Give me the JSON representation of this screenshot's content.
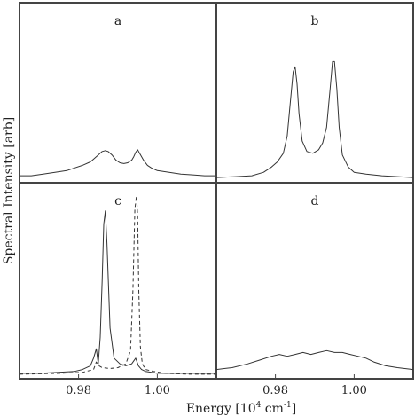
{
  "chart_data": {
    "type": "line",
    "ylabel": "Spectral Intensity [arb]",
    "xlabel": "Energy [10",
    "xlabel_sup": "4",
    "xlabel_tail": " cm",
    "xlabel_sup2": "-1",
    "xlabel_end": "]",
    "xlim": [
      0.965,
      1.015
    ],
    "xticks": [
      0.98,
      1.0
    ],
    "xtick_labels": [
      "0.98",
      "1.00"
    ],
    "ylim": [
      0,
      1
    ],
    "panels": [
      {
        "label": "a",
        "series": [
          {
            "style": "solid",
            "x": [
              0.965,
              0.968,
              0.971,
              0.974,
              0.977,
              0.979,
              0.981,
              0.983,
              0.984,
              0.985,
              0.986,
              0.9868,
              0.9875,
              0.9885,
              0.9895,
              0.9905,
              0.9915,
              0.9925,
              0.9935,
              0.994,
              0.9945,
              0.995,
              0.9955,
              0.9965,
              0.9975,
              0.9985,
              1.0,
              1.003,
              1.006,
              1.009,
              1.012,
              1.015
            ],
            "y": [
              0.02,
              0.02,
              0.03,
              0.04,
              0.05,
              0.065,
              0.08,
              0.1,
              0.12,
              0.14,
              0.16,
              0.165,
              0.16,
              0.14,
              0.11,
              0.095,
              0.09,
              0.095,
              0.11,
              0.13,
              0.155,
              0.17,
              0.15,
              0.11,
              0.08,
              0.065,
              0.05,
              0.04,
              0.03,
              0.025,
              0.02,
              0.02
            ]
          }
        ]
      },
      {
        "label": "b",
        "series": [
          {
            "style": "solid",
            "x": [
              0.965,
              0.97,
              0.974,
              0.977,
              0.979,
              0.9805,
              0.982,
              0.983,
              0.9838,
              0.9845,
              0.985,
              0.9855,
              0.986,
              0.9868,
              0.988,
              0.9895,
              0.991,
              0.992,
              0.993,
              0.9938,
              0.9945,
              0.995,
              0.9956,
              0.9962,
              0.997,
              0.9985,
              1.0,
              1.003,
              1.007,
              1.011,
              1.015
            ],
            "y": [
              0.01,
              0.015,
              0.02,
              0.04,
              0.07,
              0.1,
              0.15,
              0.25,
              0.45,
              0.62,
              0.65,
              0.55,
              0.38,
              0.22,
              0.16,
              0.15,
              0.17,
              0.21,
              0.3,
              0.5,
              0.68,
              0.68,
              0.52,
              0.3,
              0.14,
              0.07,
              0.04,
              0.03,
              0.02,
              0.015,
              0.01
            ]
          }
        ]
      },
      {
        "label": "c",
        "series": [
          {
            "style": "solid",
            "x": [
              0.965,
              0.97,
              0.975,
              0.979,
              0.981,
              0.983,
              0.9838,
              0.9845,
              0.985,
              0.9855,
              0.986,
              0.9864,
              0.9868,
              0.9872,
              0.988,
              0.989,
              0.9905,
              0.992,
              0.9935,
              0.9945,
              0.9952,
              0.996,
              0.997,
              0.9985,
              1.0,
              1.005,
              1.01,
              1.015
            ],
            "y": [
              0.01,
              0.01,
              0.015,
              0.02,
              0.03,
              0.05,
              0.09,
              0.14,
              0.06,
              0.2,
              0.5,
              0.8,
              0.87,
              0.7,
              0.25,
              0.09,
              0.06,
              0.05,
              0.06,
              0.09,
              0.05,
              0.03,
              0.02,
              0.015,
              0.01,
              0.01,
              0.01,
              0.01
            ]
          },
          {
            "style": "dashed",
            "x": [
              0.965,
              0.975,
              0.981,
              0.9838,
              0.9845,
              0.9852,
              0.986,
              0.988,
              0.99,
              0.992,
              0.9932,
              0.9938,
              0.9943,
              0.9947,
              0.995,
              0.9953,
              0.9957,
              0.9962,
              0.997,
              0.999,
              1.002,
              1.008,
              1.015
            ],
            "y": [
              0.005,
              0.01,
              0.015,
              0.03,
              0.07,
              0.05,
              0.04,
              0.035,
              0.04,
              0.06,
              0.13,
              0.45,
              0.88,
              0.95,
              0.85,
              0.45,
              0.15,
              0.06,
              0.03,
              0.02,
              0.01,
              0.005,
              0.005
            ]
          }
        ]
      },
      {
        "label": "d",
        "series": [
          {
            "style": "solid",
            "x": [
              0.965,
              0.969,
              0.973,
              0.976,
              0.979,
              0.981,
              0.983,
              0.985,
              0.987,
              0.989,
              0.991,
              0.993,
              0.995,
              0.997,
              0.999,
              1.001,
              1.003,
              1.005,
              1.008,
              1.011,
              1.015
            ],
            "y": [
              0.03,
              0.04,
              0.06,
              0.08,
              0.1,
              0.11,
              0.1,
              0.11,
              0.12,
              0.11,
              0.12,
              0.13,
              0.12,
              0.12,
              0.11,
              0.1,
              0.09,
              0.07,
              0.05,
              0.04,
              0.03
            ]
          }
        ]
      }
    ],
    "colors": {
      "line": "#333333",
      "frame": "#444444"
    }
  }
}
